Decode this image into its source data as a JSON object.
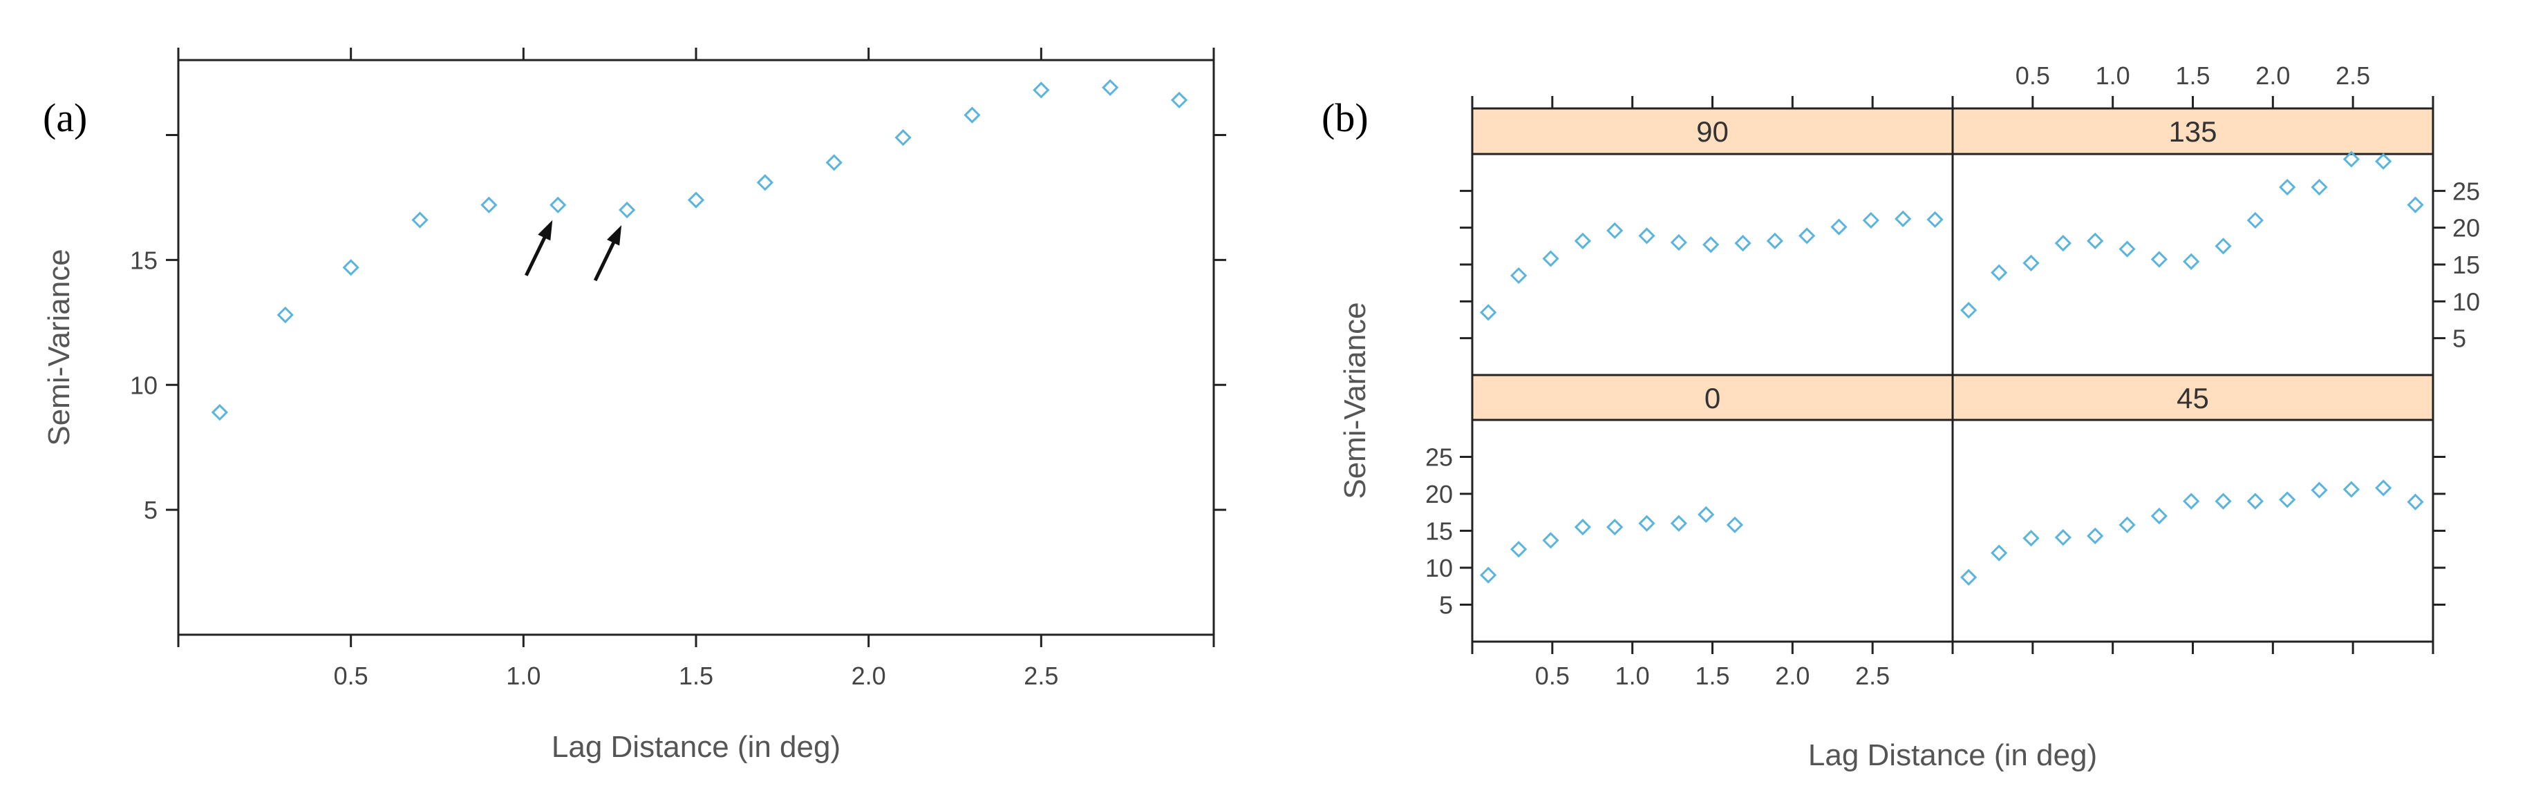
{
  "figure": {
    "colors": {
      "point": "#5ab4dc",
      "strip": "#ffdfc0",
      "frame": "#222222"
    }
  },
  "chart_data": [
    {
      "id": "a",
      "type": "scatter",
      "panel_label": "(a)",
      "title": "",
      "xlabel": "Lag Distance (in deg)",
      "ylabel": "Semi-Variance",
      "xlim": [
        0,
        3.0
      ],
      "ylim": [
        0,
        23
      ],
      "xticks": [
        0.5,
        1.0,
        1.5,
        2.0,
        2.5
      ],
      "xtick_labels": [
        "0.5",
        "1.0",
        "1.5",
        "2.0",
        "2.5"
      ],
      "yticks": [
        5,
        10,
        15
      ],
      "ytick_labels": [
        "5",
        "10",
        "15"
      ],
      "grid": false,
      "x": [
        0.12,
        0.31,
        0.5,
        0.7,
        0.9,
        1.1,
        1.3,
        1.5,
        1.7,
        1.9,
        2.1,
        2.3,
        2.5,
        2.7,
        2.9
      ],
      "y": [
        8.9,
        12.8,
        14.7,
        16.6,
        17.2,
        17.2,
        17.0,
        17.4,
        18.1,
        18.9,
        19.9,
        20.8,
        21.8,
        21.9,
        21.4
      ],
      "annotations": [
        {
          "type": "arrow",
          "points_to_x": 1.1,
          "points_to_y": 17.2
        },
        {
          "type": "arrow",
          "points_to_x": 1.3,
          "points_to_y": 17.0
        }
      ]
    },
    {
      "id": "b",
      "type": "scatter",
      "panel_label": "(b)",
      "title": "",
      "xlabel": "Lag Distance (in deg)",
      "ylabel": "Semi-Variance",
      "xlim": [
        0,
        3.0
      ],
      "ylim": [
        0,
        30
      ],
      "xticks": [
        0.5,
        1.0,
        1.5,
        2.0,
        2.5
      ],
      "xtick_labels": [
        "0.5",
        "1.0",
        "1.5",
        "2.0",
        "2.5"
      ],
      "yticks": [
        5,
        10,
        15,
        20,
        25
      ],
      "ytick_labels": [
        "5",
        "10",
        "15",
        "20",
        "25"
      ],
      "grid": false,
      "layout": "2x2 lattice",
      "panels": [
        {
          "direction": "90",
          "x": [
            0.1,
            0.29,
            0.49,
            0.69,
            0.89,
            1.09,
            1.29,
            1.49,
            1.69,
            1.89,
            2.09,
            2.29,
            2.49,
            2.69,
            2.89
          ],
          "y": [
            8.5,
            13.5,
            15.8,
            18.2,
            19.6,
            18.9,
            18.0,
            17.7,
            17.9,
            18.2,
            18.9,
            20.1,
            21.0,
            21.2,
            21.1
          ]
        },
        {
          "direction": "135",
          "x": [
            0.1,
            0.29,
            0.49,
            0.69,
            0.89,
            1.09,
            1.29,
            1.49,
            1.69,
            1.89,
            2.09,
            2.29,
            2.49,
            2.69,
            2.89
          ],
          "y": [
            8.8,
            13.9,
            15.2,
            17.9,
            18.2,
            17.1,
            15.7,
            15.4,
            17.5,
            21.0,
            25.5,
            25.5,
            29.3,
            29.0,
            23.1
          ]
        },
        {
          "direction": "0",
          "x": [
            0.1,
            0.29,
            0.49,
            0.69,
            0.89,
            1.09,
            1.29,
            1.46,
            1.64
          ],
          "y": [
            9.0,
            12.5,
            13.7,
            15.5,
            15.5,
            16.0,
            16.0,
            17.2,
            15.8
          ]
        },
        {
          "direction": "45",
          "x": [
            0.1,
            0.29,
            0.49,
            0.69,
            0.89,
            1.09,
            1.29,
            1.49,
            1.69,
            1.89,
            2.09,
            2.29,
            2.49,
            2.69,
            2.89
          ],
          "y": [
            8.7,
            12.0,
            14.0,
            14.1,
            14.3,
            15.8,
            17.0,
            19.0,
            19.0,
            19.0,
            19.2,
            20.5,
            20.6,
            20.8,
            18.9
          ]
        }
      ]
    }
  ]
}
